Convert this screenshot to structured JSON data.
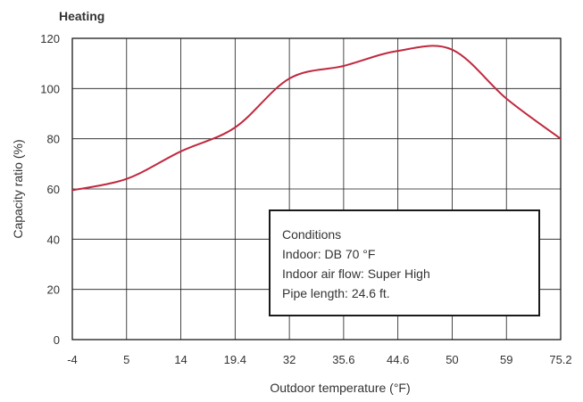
{
  "chart_data": {
    "type": "line",
    "title": "Heating",
    "xlabel": "Outdoor temperature (°F)",
    "ylabel": "Capacity ratio (%)",
    "x_ticks": [
      "-4",
      "5",
      "14",
      "19.4",
      "32",
      "35.6",
      "44.6",
      "50",
      "59",
      "75.2"
    ],
    "y_ticks": [
      0,
      20,
      40,
      60,
      80,
      100,
      120
    ],
    "ylim": [
      0,
      120
    ],
    "grid": true,
    "series": [
      {
        "name": "",
        "color": "#c0283f",
        "x": [
          -4,
          5,
          14,
          19.4,
          32,
          35.6,
          44.6,
          50,
          59,
          75.2
        ],
        "values": [
          59.5,
          64,
          75,
          84.5,
          104,
          109,
          115,
          115.5,
          96,
          80
        ]
      }
    ],
    "annotation": {
      "lines": [
        "Conditions",
        "Indoor: DB 70 °F",
        "Indoor air flow: Super High",
        "Pipe length: 24.6 ft."
      ],
      "placement": "lower-right"
    }
  }
}
